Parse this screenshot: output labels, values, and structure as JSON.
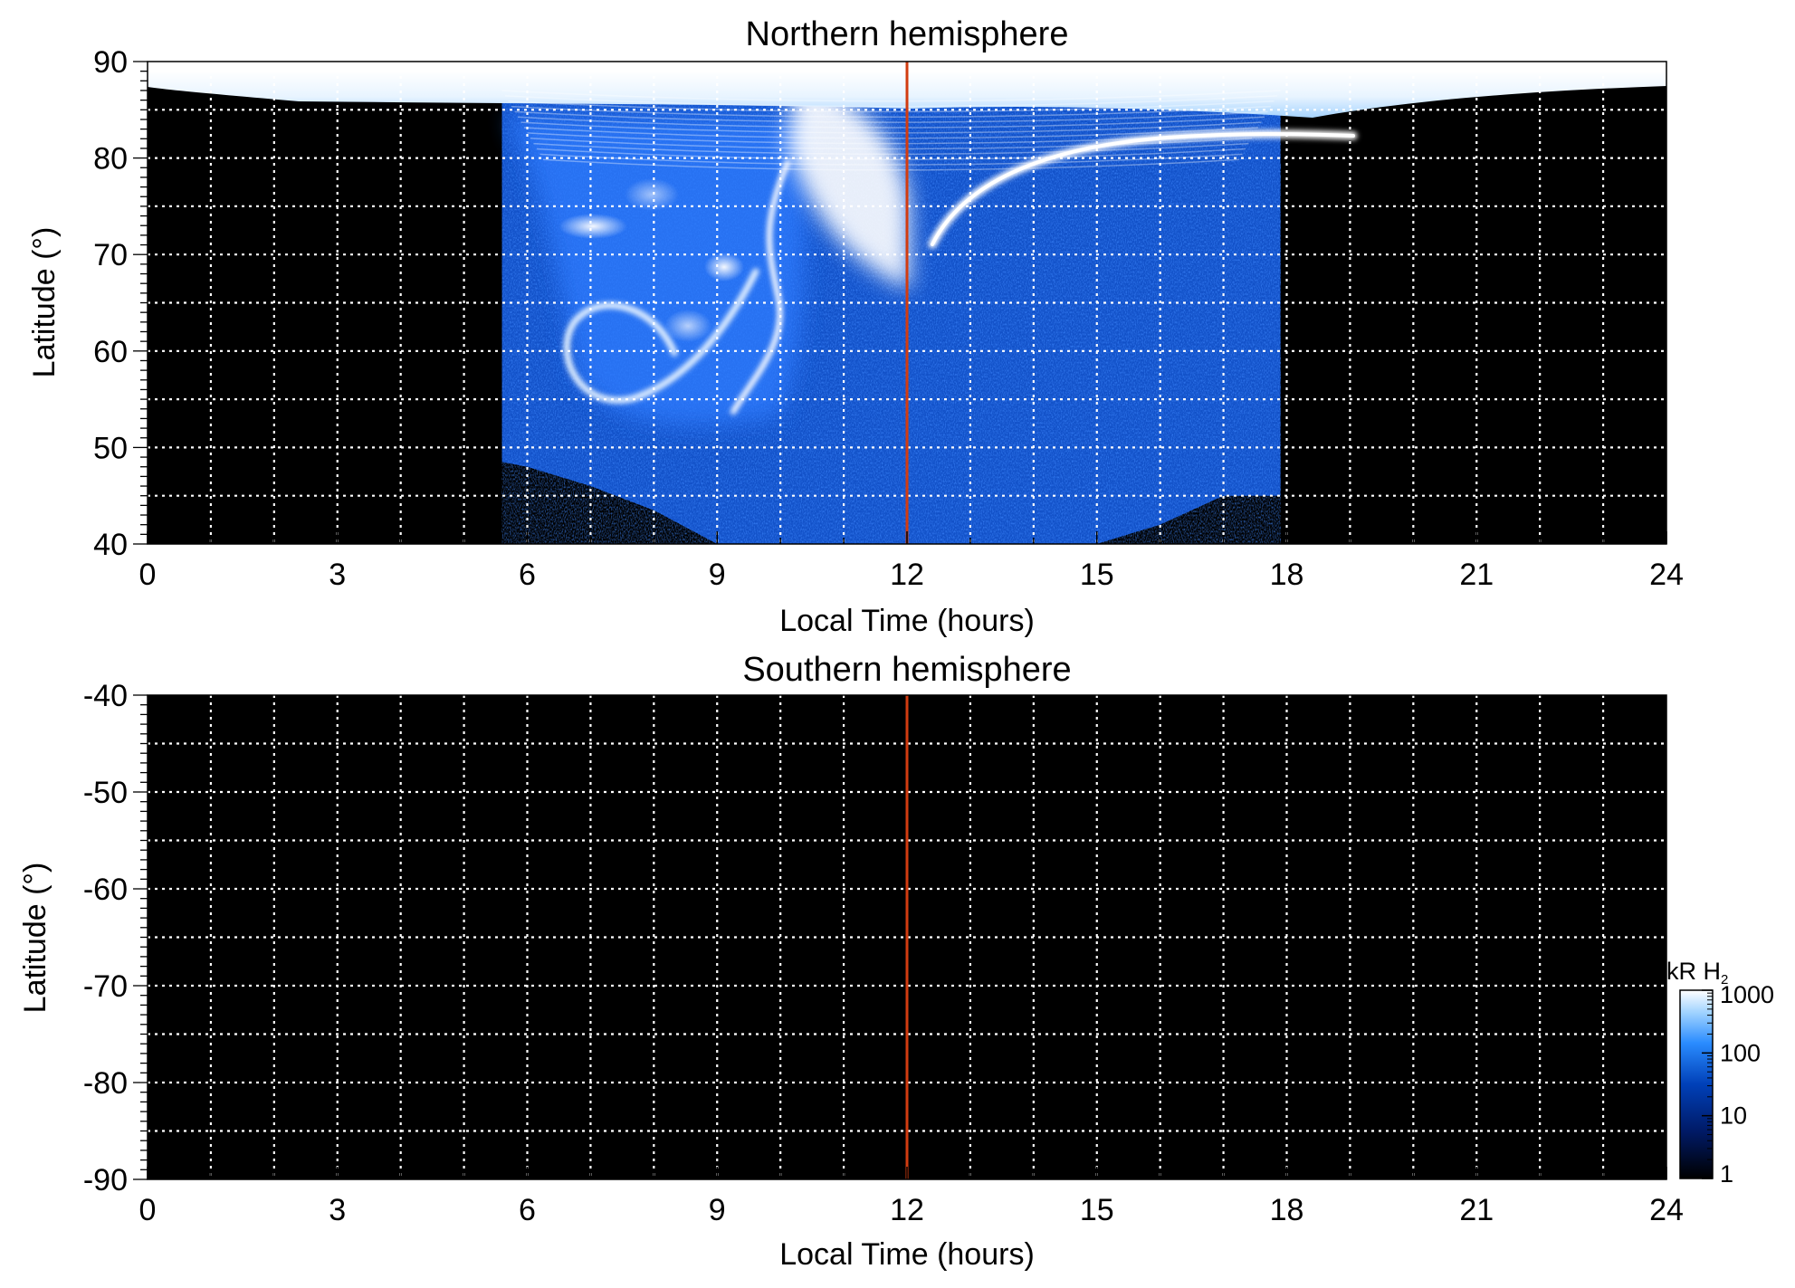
{
  "chart_data": [
    {
      "type": "heatmap",
      "title": "Northern hemisphere",
      "xlabel": "Local Time (hours)",
      "ylabel": "Latitude (°)",
      "xlim": [
        0,
        24
      ],
      "ylim": [
        40,
        90
      ],
      "x_ticks": [
        "0",
        "3",
        "6",
        "9",
        "12",
        "15",
        "18",
        "21",
        "24"
      ],
      "y_ticks": [
        "40",
        "50",
        "60",
        "70",
        "80",
        "90"
      ],
      "grid": true,
      "reference_line": {
        "x": 12,
        "color": "#d23c10"
      },
      "coverage": {
        "lt": [
          5.6,
          6.0,
          7.0,
          8.0,
          9.0,
          10.0,
          11.0,
          12.0,
          13.0,
          14.0,
          15.0,
          16.0,
          17.0,
          17.9
        ],
        "lat_min": [
          48.5,
          48.0,
          46.0,
          43.5,
          40.0,
          39.5,
          39.5,
          39.5,
          39.5,
          39.5,
          40.0,
          42.0,
          45.0,
          45.0
        ]
      },
      "features": [
        {
          "kind": "polar-cap",
          "lt_range": [
            0,
            24
          ],
          "lat_range": [
            85,
            90
          ],
          "intensity": "~1000 kR"
        },
        {
          "kind": "arc",
          "lt_range": [
            12.3,
            19.0
          ],
          "lat_range": [
            70,
            83
          ],
          "intensity": "~1000 kR"
        },
        {
          "kind": "spiral",
          "lt_range": [
            6.0,
            10.5
          ],
          "lat_range": [
            52,
            78
          ],
          "intensity": "~300–1000 kR"
        },
        {
          "kind": "cusp",
          "lt_range": [
            10.5,
            12.0
          ],
          "lat_range": [
            62,
            90
          ],
          "intensity": "~1000 kR"
        }
      ]
    },
    {
      "type": "heatmap",
      "title": "Southern hemisphere",
      "xlabel": "Local Time (hours)",
      "ylabel": "Latitude (°)",
      "xlim": [
        0,
        24
      ],
      "ylim": [
        -90,
        -40
      ],
      "x_ticks": [
        "0",
        "3",
        "6",
        "9",
        "12",
        "15",
        "18",
        "21",
        "24"
      ],
      "y_ticks": [
        "-40",
        "-50",
        "-60",
        "-70",
        "-80",
        "-90"
      ],
      "grid": true,
      "reference_line": {
        "x": 12,
        "color": "#d23c10"
      },
      "coverage": null
    }
  ],
  "colorbar": {
    "unit": "kR H",
    "unit_subscript": "2",
    "scale": "log",
    "range": [
      1,
      1000
    ],
    "ticks": [
      "1",
      "10",
      "100",
      "1000"
    ],
    "colors": [
      "#000000",
      "#001a66",
      "#0040b8",
      "#2a8cff",
      "#9fd2ff",
      "#ffffff"
    ]
  }
}
